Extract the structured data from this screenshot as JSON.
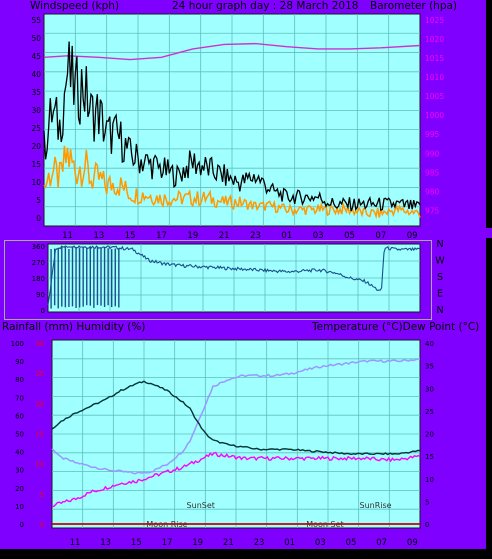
{
  "header": {
    "left_title": "Windspeed (kph)",
    "center_title": "24 hour graph day : 28 March 2018",
    "right_title": "Barometer (hpa)"
  },
  "bottom_header": {
    "left_title": "Rainfall (mm)  Humidity (%)",
    "right_title": "Temperature (°C)Dew Point (°C)"
  },
  "time_labels": [
    "11",
    "13",
    "15",
    "17",
    "19",
    "21",
    "23",
    "01",
    "03",
    "05",
    "07",
    "09"
  ],
  "direction_labels": [
    "N",
    "W",
    "S",
    "E",
    "N"
  ],
  "colors": {
    "window": "#7f00ff",
    "plot_bg": "#a0ffff",
    "barometer": "#cc33cc",
    "wind_gust": "#000000",
    "wind_avg": "#ff9900",
    "wind_direction": "#1a4f8a",
    "temperature": "#003333",
    "dew_point": "#ff00ff",
    "humidity": "#9999ff",
    "rainfall": "#cc0000",
    "sun_moon_text": "#333333"
  },
  "chart_data": [
    {
      "type": "line",
      "name": "wind-barometer",
      "x_ticks": [
        "11",
        "13",
        "15",
        "17",
        "19",
        "21",
        "23",
        "01",
        "03",
        "05",
        "07",
        "09"
      ],
      "left_axis": {
        "label": "Windspeed (kph)",
        "ticks": [
          0,
          5,
          10,
          15,
          20,
          25,
          30,
          35,
          40,
          45,
          50,
          55
        ],
        "ylim": [
          0,
          55
        ]
      },
      "right_axis": {
        "label": "Barometer (hpa)",
        "ticks": [
          975,
          980,
          985,
          990,
          995,
          1000,
          1005,
          1010,
          1015,
          1020,
          1025
        ],
        "ylim": [
          973,
          1025
        ]
      },
      "series": [
        {
          "name": "Barometer",
          "axis": "right",
          "x": [
            9.5,
            11,
            13,
            15,
            17,
            19,
            21,
            23,
            1,
            3,
            5,
            7,
            9.5
          ],
          "values": [
            1015.2,
            1015.6,
            1015.2,
            1014.6,
            1015.2,
            1017.4,
            1018.6,
            1018.8,
            1018.0,
            1017.4,
            1017.4,
            1017.7,
            1018.3
          ]
        },
        {
          "name": "Wind gust",
          "axis": "left",
          "x": [
            9.5,
            10,
            10.5,
            11,
            11.5,
            12,
            12.5,
            13,
            13.5,
            14,
            14.5,
            15,
            16,
            17,
            18,
            19,
            20,
            21,
            22,
            23,
            24,
            1,
            2,
            3,
            4,
            5,
            6,
            7,
            8,
            9.5
          ],
          "values": [
            20,
            30,
            26,
            42,
            36,
            38,
            30,
            30,
            24,
            24,
            22,
            18,
            16,
            14,
            12,
            16,
            14,
            12,
            10,
            12,
            8,
            6,
            6,
            6,
            4,
            4,
            4,
            4,
            4,
            3
          ]
        },
        {
          "name": "Wind speed",
          "axis": "left",
          "x": [
            9.5,
            10,
            10.5,
            11,
            11.5,
            12,
            12.5,
            13,
            13.5,
            14,
            14.5,
            15,
            16,
            17,
            18,
            19,
            20,
            21,
            22,
            23,
            24,
            1,
            2,
            3,
            4,
            5,
            6,
            7,
            8,
            9.5
          ],
          "values": [
            8,
            12,
            10,
            16,
            12,
            14,
            10,
            10,
            8,
            9,
            8,
            6,
            6,
            5,
            5,
            5,
            5,
            4,
            4,
            3,
            3,
            2,
            2,
            2,
            2,
            2,
            1,
            1,
            2,
            1
          ]
        }
      ]
    },
    {
      "type": "line",
      "name": "wind-direction",
      "x_ticks": [
        "11",
        "13",
        "15",
        "17",
        "19",
        "21",
        "23",
        "01",
        "03",
        "05",
        "07",
        "09"
      ],
      "left_axis": {
        "ticks": [
          0,
          90,
          180,
          270,
          360
        ],
        "ylim": [
          0,
          360
        ]
      },
      "right_axis": {
        "labels": [
          "N",
          "W",
          "S",
          "E",
          "N"
        ]
      },
      "series": [
        {
          "name": "Wind direction",
          "x": [
            9.5,
            10,
            11,
            12,
            13,
            14,
            15,
            16,
            17,
            18,
            19,
            20,
            21,
            22,
            23,
            24,
            1,
            2,
            3,
            4,
            5,
            6,
            7,
            7.2,
            8,
            9.5
          ],
          "values": [
            20,
            350,
            360,
            355,
            355,
            350,
            340,
            280,
            260,
            250,
            245,
            240,
            235,
            230,
            225,
            220,
            215,
            220,
            225,
            210,
            180,
            160,
            100,
            350,
            340,
            340
          ]
        }
      ]
    },
    {
      "type": "line",
      "name": "temperature-humidity",
      "x_ticks": [
        "11",
        "13",
        "15",
        "17",
        "19",
        "21",
        "23",
        "01",
        "03",
        "05",
        "07",
        "09"
      ],
      "left_axis": {
        "label": "Rainfall (mm)  Humidity (%)",
        "ticks": [
          0,
          10,
          20,
          30,
          40,
          50,
          60,
          70,
          80,
          90,
          100
        ],
        "ylim": [
          0,
          100
        ]
      },
      "rain_axis": {
        "ticks": [
          0,
          5,
          10,
          15,
          20,
          25,
          30
        ],
        "ylim": [
          0,
          30
        ]
      },
      "right_axis": {
        "label": "Temperature (°C)Dew Point (°C)",
        "ticks": [
          0,
          5,
          10,
          15,
          20,
          25,
          30,
          35,
          40
        ],
        "ylim": [
          0,
          40
        ]
      },
      "annotations": [
        {
          "text": "SunSet",
          "x": 19.2,
          "row": "upper"
        },
        {
          "text": "SunRise",
          "x": 6.6,
          "row": "upper"
        },
        {
          "text": "Moon Rise",
          "x": 17.0,
          "row": "lower"
        },
        {
          "text": "Moon Set",
          "x": 3.3,
          "row": "lower"
        }
      ],
      "series": [
        {
          "name": "Temperature",
          "axis": "right",
          "x": [
            9.5,
            10,
            11,
            12,
            13,
            14,
            15,
            15.5,
            16,
            17,
            18,
            18.5,
            19,
            19.5,
            20,
            21,
            22,
            23,
            24,
            1,
            2,
            3,
            4,
            5,
            6,
            7,
            8,
            9.5
          ],
          "values": [
            21,
            22.5,
            24.5,
            26,
            27.5,
            29.5,
            31,
            31.5,
            31,
            29.5,
            27,
            25.5,
            22.5,
            20,
            18.5,
            17.5,
            17,
            16.5,
            16.5,
            16.5,
            16.2,
            16,
            15.7,
            15.5,
            15.5,
            15.5,
            15.5,
            16.2
          ]
        },
        {
          "name": "Dew point",
          "axis": "right",
          "x": [
            9.5,
            10,
            11,
            12,
            13,
            14,
            15,
            16,
            17,
            18,
            19,
            20,
            21,
            22,
            23,
            24,
            1,
            2,
            3,
            4,
            5,
            6,
            7,
            8,
            9.5
          ],
          "values": [
            4,
            4.5,
            5.5,
            7,
            8,
            9,
            9.5,
            10.5,
            11.5,
            12.5,
            14,
            15.5,
            15,
            14.5,
            14.5,
            14.5,
            14.5,
            14.5,
            14.5,
            14.5,
            14.5,
            14.5,
            14.2,
            14.2,
            15
          ]
        },
        {
          "name": "Humidity",
          "axis": "left",
          "x": [
            9.5,
            10,
            11,
            12,
            13,
            14,
            15,
            16,
            17,
            18,
            18.5,
            19,
            19.5,
            20,
            21,
            22,
            23,
            24,
            1,
            2,
            3,
            4,
            5,
            6,
            7,
            8,
            9.5
          ],
          "values": [
            42,
            37,
            34,
            32,
            30,
            29,
            28,
            29,
            33,
            40,
            46,
            56,
            66,
            76,
            80,
            82,
            82,
            82,
            83,
            85,
            87,
            88,
            89,
            90,
            90,
            90,
            91
          ]
        },
        {
          "name": "Rainfall",
          "axis": "rain",
          "x": [
            9.5,
            9.5
          ],
          "values": [
            0,
            0
          ]
        }
      ]
    }
  ]
}
